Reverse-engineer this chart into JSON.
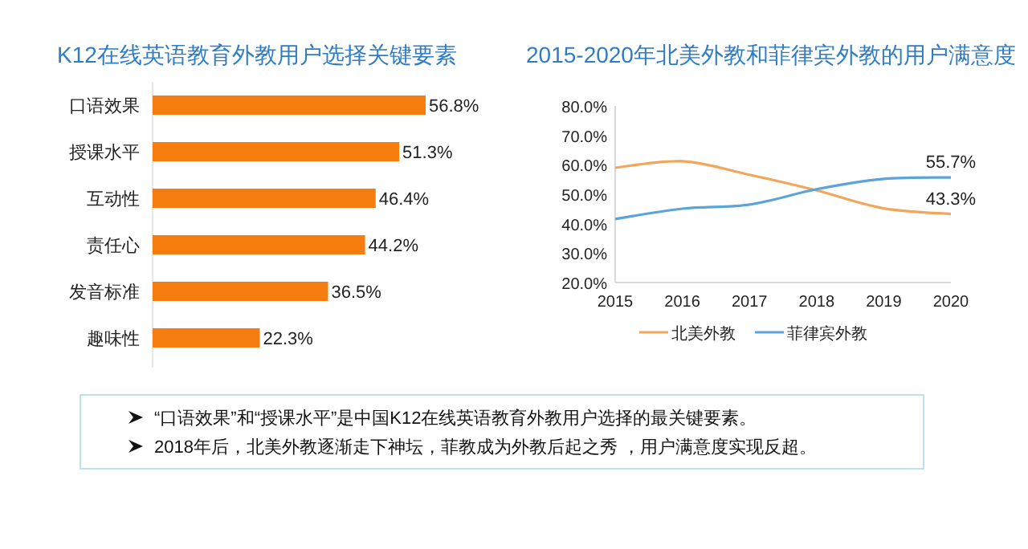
{
  "chart_data": [
    {
      "type": "bar",
      "orientation": "horizontal",
      "title": "K12在线英语教育外教用户选择关键要素",
      "categories": [
        "口语效果",
        "授课水平",
        "互动性",
        "责任心",
        "发音标准",
        "趣味性"
      ],
      "values": [
        56.8,
        51.3,
        46.4,
        44.2,
        36.5,
        22.3
      ],
      "color": "#f57c0f",
      "value_labels": [
        "56.8%",
        "51.3%",
        "46.4%",
        "44.2%",
        "36.5%",
        "22.3%"
      ]
    },
    {
      "type": "line",
      "title": "2015-2020年北美外教和菲律宾外教的用户满意度",
      "x": [
        2015,
        2016,
        2017,
        2018,
        2019,
        2020
      ],
      "xlim": [
        2015,
        2020
      ],
      "xticks": [
        2015,
        2016,
        2017,
        2018,
        2019,
        2020
      ],
      "ylim": [
        20,
        80
      ],
      "yticks": [
        {
          "value": 20,
          "label": "20.0%"
        },
        {
          "value": 30,
          "label": "30.0%"
        },
        {
          "value": 40,
          "label": "40.0%"
        },
        {
          "value": 50,
          "label": "50.0%"
        },
        {
          "value": 60,
          "label": "60.0%"
        },
        {
          "value": 70,
          "label": "70.0%"
        },
        {
          "value": 80,
          "label": "80.0%"
        }
      ],
      "legend": "bottom",
      "grid": false,
      "series": [
        {
          "name": "北美外教",
          "color": "#f2a65a",
          "values": [
            59.0,
            61.2,
            56.6,
            51.3,
            45.2,
            43.3
          ],
          "value_labels": [
            null,
            null,
            null,
            null,
            null,
            "43.3%"
          ]
        },
        {
          "name": "菲律宾外教",
          "color": "#5ba3d9",
          "values": [
            41.6,
            45.1,
            46.5,
            51.7,
            55.2,
            55.7
          ],
          "value_labels": [
            null,
            null,
            null,
            null,
            null,
            "55.7%"
          ]
        }
      ]
    },
    {
      "type": "other",
      "annotations": [
        "“口语效果”和“授课水平”是中国K12在线英语教育外教用户选择的最关键要素。",
        "2018年后，北美外教逐渐走下神坛，菲教成为外教后起之秀 ，用户满意度实现反超。"
      ]
    }
  ]
}
